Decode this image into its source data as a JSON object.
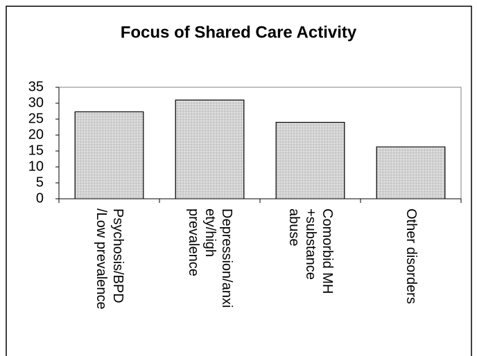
{
  "chart_data": {
    "type": "bar",
    "title": "Focus of Shared Care Activity",
    "categories": [
      [
        "Psychosis/BPD",
        "/Low prevalence"
      ],
      [
        "Depression/anxi",
        "ety/high",
        "prevalence"
      ],
      [
        "Comorbid MH",
        "+substance",
        "abuse"
      ],
      [
        "Other disorders"
      ]
    ],
    "values": [
      27.3,
      31,
      24,
      16.3
    ],
    "color": "#d4d4d4",
    "ylim": [
      0,
      35
    ],
    "yticks": [
      0,
      5,
      10,
      15,
      20,
      25,
      30,
      35
    ],
    "grid": false
  }
}
